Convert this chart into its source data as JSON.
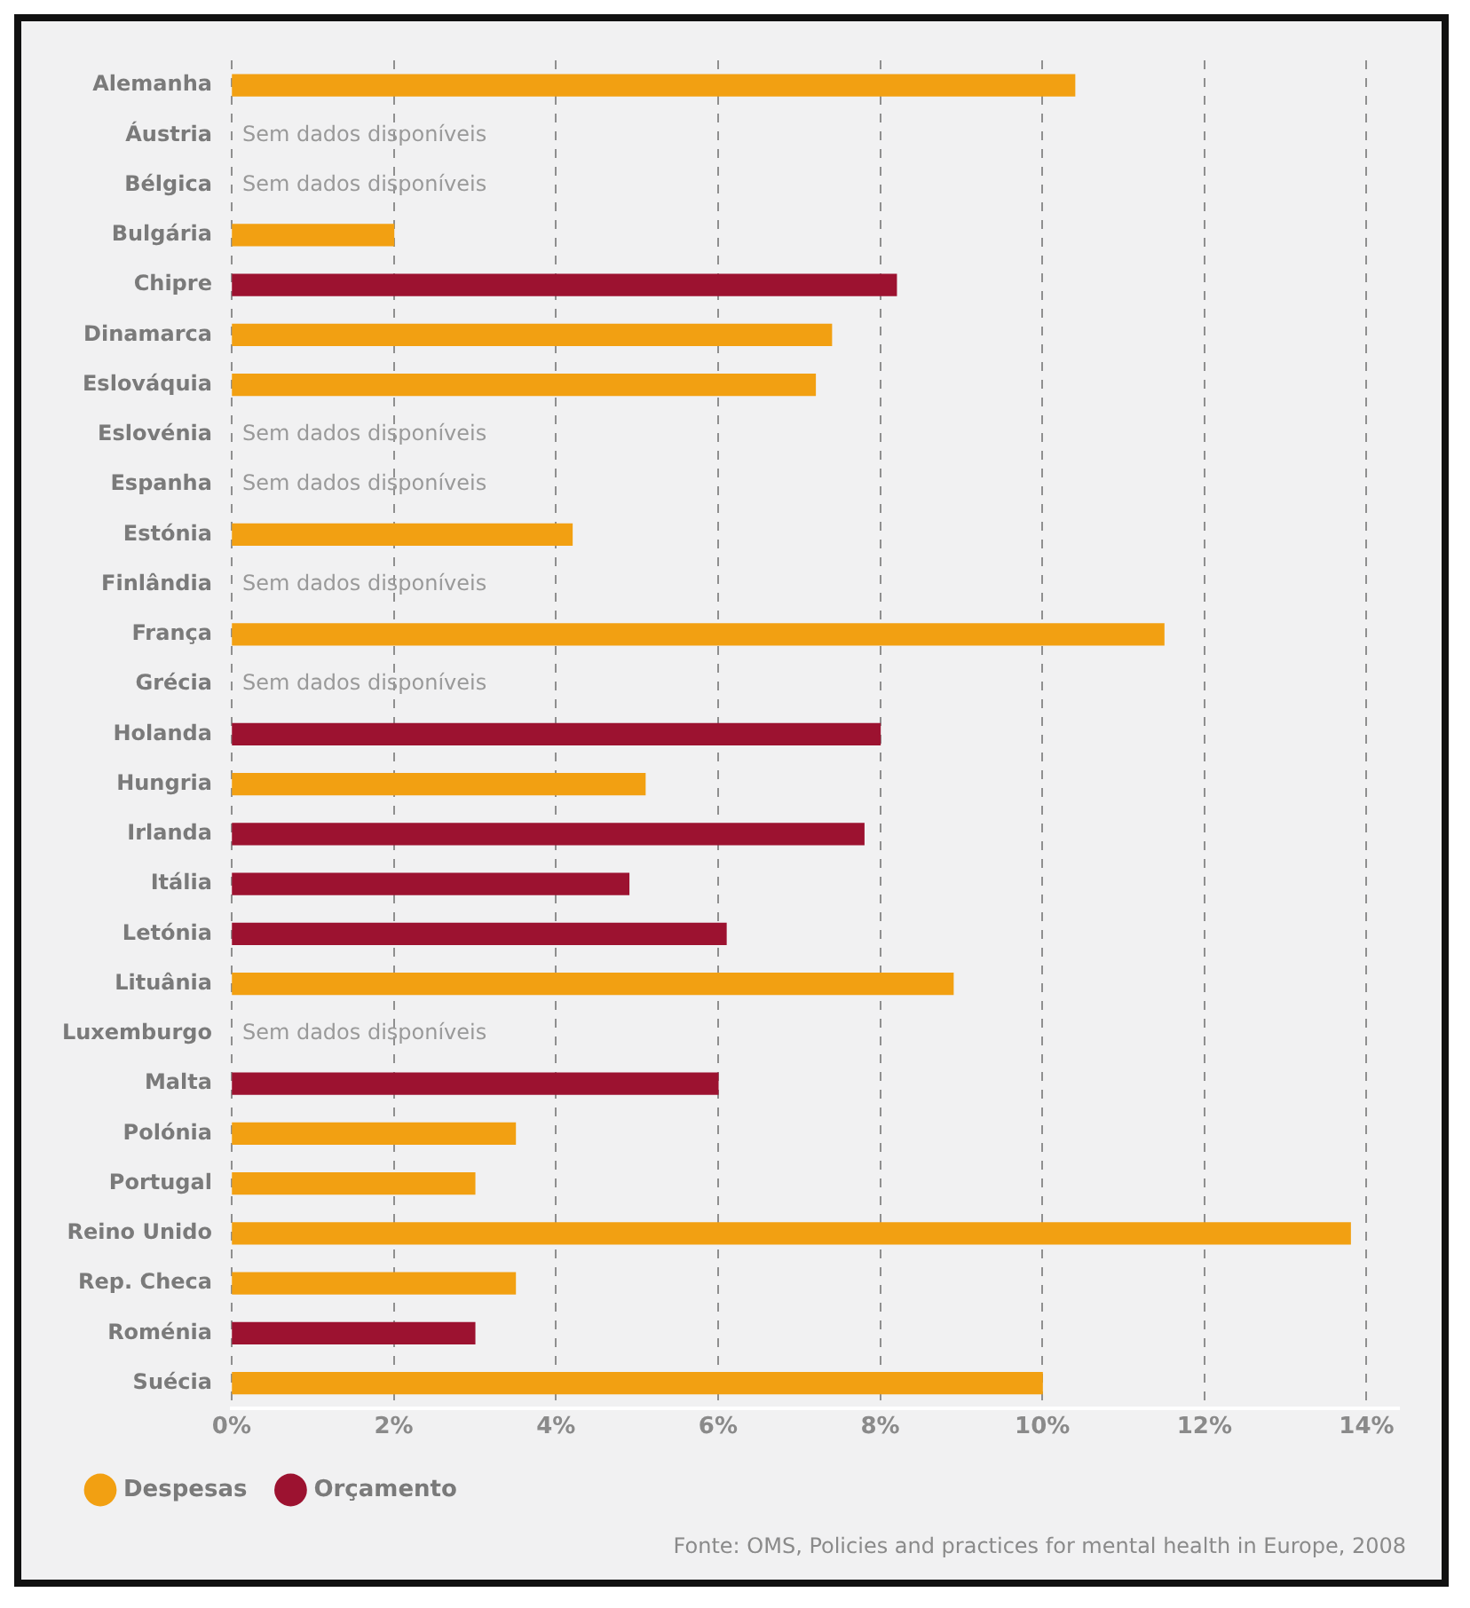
{
  "chart_data": {
    "type": "bar",
    "orientation": "horizontal",
    "stacked": true,
    "categories": [
      "Alemanha",
      "Áustria",
      "Bélgica",
      "Bulgária",
      "Chipre",
      "Dinamarca",
      "Eslováquia",
      "Eslovénia",
      "Espanha",
      "Estónia",
      "Finlândia",
      "França",
      "Grécia",
      "Holanda",
      "Hungria",
      "Irlanda",
      "Itália",
      "Letónia",
      "Lituânia",
      "Luxemburgo",
      "Malta",
      "Polónia",
      "Portugal",
      "Reino Unido",
      "Rep. Checa",
      "Roménia",
      "Suécia"
    ],
    "series": [
      {
        "name": "Despesas",
        "color": "#f2a012",
        "values": [
          10.4,
          null,
          null,
          2.0,
          null,
          7.4,
          7.2,
          null,
          null,
          4.2,
          null,
          11.5,
          null,
          null,
          5.1,
          null,
          null,
          null,
          8.9,
          null,
          null,
          3.5,
          3.0,
          13.8,
          3.5,
          null,
          10.0
        ]
      },
      {
        "name": "Orçamento",
        "color": "#9c1230",
        "values": [
          null,
          null,
          null,
          null,
          8.2,
          null,
          null,
          null,
          null,
          null,
          null,
          null,
          null,
          8.0,
          null,
          7.8,
          4.9,
          6.1,
          null,
          null,
          6.0,
          null,
          null,
          null,
          null,
          3.0,
          null
        ]
      }
    ],
    "xlim": [
      0,
      14.4
    ],
    "xticks": [
      {
        "value": 0,
        "label": "0%"
      },
      {
        "value": 2,
        "label": "2%"
      },
      {
        "value": 4,
        "label": "4%"
      },
      {
        "value": 6,
        "label": "6%"
      },
      {
        "value": 8,
        "label": "8%"
      },
      {
        "value": 10,
        "label": "10%"
      },
      {
        "value": 12,
        "label": "12%"
      },
      {
        "value": 14,
        "label": "14%"
      }
    ],
    "grid": "x",
    "legend": "bottom left",
    "annotations": [
      "Sem dados disponíveis",
      "Sem dados disponíveis",
      "Sem dados disponíveis",
      "Sem dados disponíveis",
      "Sem dados disponíveis",
      "Sem dados disponíveis",
      "Sem dados disponíveis",
      "Fonte: OMS, Policies and practices for mental health in Europe, 2008"
    ]
  }
}
